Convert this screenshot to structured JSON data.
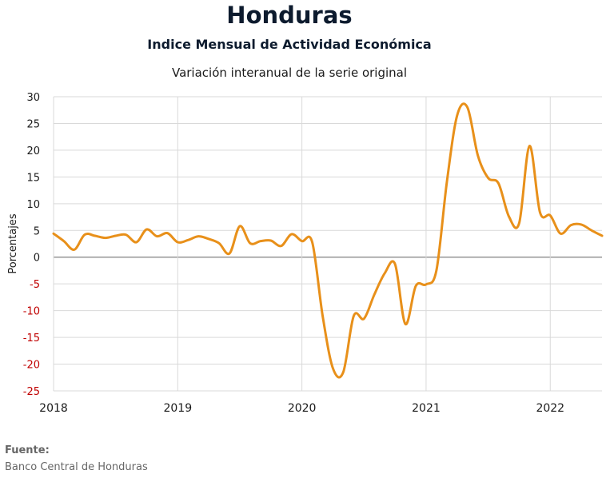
{
  "header": {
    "title": "Honduras",
    "subtitle": "Indice Mensual de  Actividad Económica",
    "subtitle2": "Variación interanual de la serie original"
  },
  "footer": {
    "source_label": "Fuente:",
    "source_value": "Banco Central de Honduras"
  },
  "colors": {
    "line": "#e8901a",
    "negative_tick": "#c00000",
    "positive_tick": "#1a1a1a",
    "grid": "#d9d9d9",
    "zero_line": "#808080"
  },
  "chart_data": {
    "type": "line",
    "title": "Variación interanual de la serie original",
    "xlabel": "",
    "ylabel": "Porcentajes",
    "ylim": [
      -25,
      30
    ],
    "xlim": [
      2018,
      2022.4167
    ],
    "yticks": [
      30,
      25,
      20,
      15,
      10,
      5,
      0,
      -5,
      -10,
      -15,
      -20,
      -25
    ],
    "xticks": [
      2018,
      2019,
      2020,
      2021,
      2022
    ],
    "xtick_labels": [
      "2018",
      "2019",
      "2020",
      "2021",
      "2022"
    ],
    "grid": true,
    "legend": "none",
    "series": [
      {
        "x": [
          2018.0,
          2018.083,
          2018.167,
          2018.25,
          2018.333,
          2018.417,
          2018.5,
          2018.583,
          2018.667,
          2018.75,
          2018.833,
          2018.917,
          2019.0,
          2019.083,
          2019.167,
          2019.25,
          2019.333,
          2019.417,
          2019.5,
          2019.583,
          2019.667,
          2019.75,
          2019.833,
          2019.917,
          2020.0,
          2020.083,
          2020.167,
          2020.25,
          2020.333,
          2020.417,
          2020.5,
          2020.583,
          2020.667,
          2020.75,
          2020.833,
          2020.917,
          2021.0,
          2021.083,
          2021.167,
          2021.25,
          2021.333,
          2021.417,
          2021.5,
          2021.583,
          2021.667,
          2021.75,
          2021.833,
          2021.917,
          2022.0,
          2022.083,
          2022.167,
          2022.25,
          2022.333,
          2022.417
        ],
        "values": [
          4.4,
          3.0,
          1.4,
          4.2,
          4.0,
          3.6,
          4.0,
          4.2,
          2.8,
          5.2,
          3.9,
          4.5,
          2.8,
          3.2,
          3.9,
          3.4,
          2.6,
          0.7,
          5.8,
          2.6,
          3.0,
          3.1,
          2.1,
          4.3,
          3.0,
          2.8,
          -11.0,
          -20.8,
          -21.5,
          -11.0,
          -11.5,
          -7.0,
          -3.0,
          -1.3,
          -12.5,
          -5.4,
          -5.1,
          -2.5,
          14.0,
          26.5,
          28.0,
          19.0,
          14.8,
          13.8,
          7.6,
          6.4,
          20.8,
          8.4,
          7.8,
          4.4,
          6.0,
          6.1,
          5.0,
          4.0
        ]
      }
    ]
  }
}
